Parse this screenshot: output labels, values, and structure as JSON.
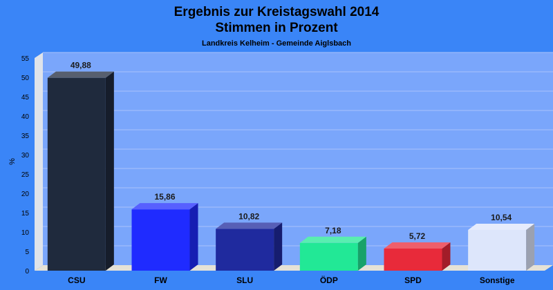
{
  "chart_data": {
    "type": "bar",
    "title": "Ergebnis zur Kreistagswahl 2014",
    "title2": "Stimmen in Prozent",
    "subtitle": "Landkreis Kelheim - Gemeinde Aiglsbach",
    "ylabel": "%",
    "ylim": [
      0,
      55
    ],
    "yticks": [
      0,
      5,
      10,
      15,
      20,
      25,
      30,
      35,
      40,
      45,
      50,
      55
    ],
    "grid": true,
    "categories": [
      "CSU",
      "FW",
      "SLU",
      "ÖDP",
      "SPD",
      "Sonstige"
    ],
    "values": [
      49.88,
      15.86,
      10.82,
      7.18,
      5.72,
      10.54
    ],
    "value_labels": [
      "49,88",
      "15,86",
      "10,82",
      "7,18",
      "5,72",
      "10,54"
    ],
    "colors": [
      "#1f2a3d",
      "#1f2bff",
      "#1f2a9e",
      "#22e896",
      "#e82a3a",
      "#dde6fb"
    ]
  },
  "colors": {
    "background": "#3a85f7",
    "plot_back": "#7aa6fb",
    "plot_side": "#dfe3ea",
    "plot_floor": "#e6e2d6",
    "gridline": "#a9c3fb"
  }
}
